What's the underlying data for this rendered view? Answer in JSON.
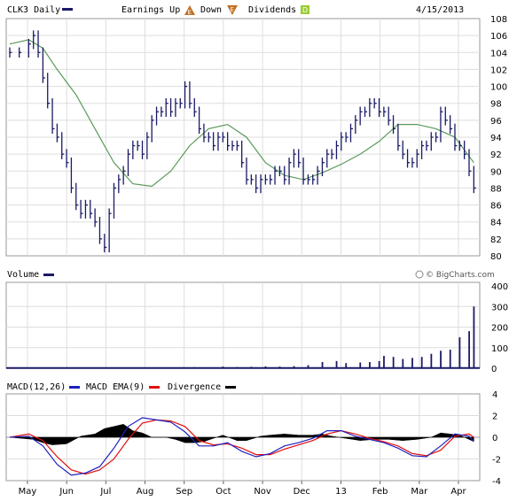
{
  "header": {
    "title": "CLK3 Daily",
    "earnings_label": "Earnings Up",
    "down_label": "Down",
    "dividends_label": "Dividends",
    "earnings_up_glyph": "E",
    "earnings_down_glyph": "E",
    "dividend_glyph": "D",
    "date": "4/15/2013"
  },
  "volume_label": "Volume",
  "watermark": "© BigCharts.com",
  "macd_legend": {
    "macd": "MACD(12,26)",
    "ema": "MACD EMA(9)",
    "divergence": "Divergence"
  },
  "colors": {
    "price": "#1a1a66",
    "ma": "#5a9a5a",
    "macd": "#2020c0",
    "ema": "#e01010",
    "divergence": "#000000",
    "volume": "#1a1a66",
    "earnings_up": "#c07020",
    "dividend": "#99cc33"
  },
  "chart_data": [
    {
      "type": "line",
      "name": "price",
      "ylim": [
        80,
        108
      ],
      "yticks": [
        80,
        82,
        84,
        86,
        88,
        90,
        92,
        94,
        96,
        98,
        100,
        102,
        104,
        106,
        108
      ],
      "xlabels": [
        "May",
        "Jun",
        "Jul",
        "Aug",
        "Sep",
        "Oct",
        "Nov",
        "Dec",
        "13",
        "Feb",
        "Mar",
        "Apr"
      ],
      "price": [
        [
          0,
          104
        ],
        [
          4,
          104
        ],
        [
          8,
          105
        ],
        [
          10,
          106
        ],
        [
          12,
          104
        ],
        [
          14,
          101
        ],
        [
          16,
          98
        ],
        [
          18,
          95
        ],
        [
          20,
          94
        ],
        [
          22,
          92
        ],
        [
          24,
          91
        ],
        [
          26,
          88
        ],
        [
          28,
          86
        ],
        [
          30,
          85
        ],
        [
          32,
          86
        ],
        [
          34,
          85
        ],
        [
          36,
          84
        ],
        [
          38,
          82
        ],
        [
          40,
          81
        ],
        [
          42,
          85
        ],
        [
          44,
          88
        ],
        [
          46,
          89
        ],
        [
          48,
          90
        ],
        [
          50,
          92
        ],
        [
          52,
          93
        ],
        [
          54,
          93
        ],
        [
          56,
          92
        ],
        [
          58,
          94
        ],
        [
          60,
          96
        ],
        [
          62,
          97
        ],
        [
          64,
          97
        ],
        [
          66,
          98
        ],
        [
          68,
          97
        ],
        [
          70,
          98
        ],
        [
          72,
          98
        ],
        [
          74,
          100
        ],
        [
          76,
          98
        ],
        [
          78,
          97
        ],
        [
          80,
          95
        ],
        [
          82,
          94
        ],
        [
          84,
          94
        ],
        [
          86,
          93
        ],
        [
          88,
          94
        ],
        [
          90,
          94
        ],
        [
          92,
          93
        ],
        [
          94,
          93
        ],
        [
          96,
          93
        ],
        [
          98,
          91
        ],
        [
          100,
          89
        ],
        [
          102,
          89
        ],
        [
          104,
          88
        ],
        [
          106,
          89
        ],
        [
          108,
          89
        ],
        [
          110,
          89
        ],
        [
          112,
          90
        ],
        [
          114,
          90
        ],
        [
          116,
          89
        ],
        [
          118,
          91
        ],
        [
          120,
          92
        ],
        [
          122,
          91
        ],
        [
          124,
          89
        ],
        [
          126,
          89
        ],
        [
          128,
          89
        ],
        [
          130,
          90
        ],
        [
          132,
          91
        ],
        [
          134,
          92
        ],
        [
          136,
          92
        ],
        [
          138,
          93
        ],
        [
          140,
          94
        ],
        [
          142,
          94
        ],
        [
          144,
          95
        ],
        [
          146,
          96
        ],
        [
          148,
          97
        ],
        [
          150,
          97
        ],
        [
          152,
          98
        ],
        [
          154,
          98
        ],
        [
          156,
          97
        ],
        [
          158,
          97
        ],
        [
          160,
          96
        ],
        [
          162,
          95
        ],
        [
          164,
          93
        ],
        [
          166,
          92
        ],
        [
          168,
          91
        ],
        [
          170,
          91
        ],
        [
          172,
          92
        ],
        [
          174,
          93
        ],
        [
          176,
          93
        ],
        [
          178,
          94
        ],
        [
          180,
          94
        ],
        [
          182,
          97
        ],
        [
          184,
          96
        ],
        [
          186,
          95
        ],
        [
          188,
          93
        ],
        [
          190,
          93
        ],
        [
          192,
          92
        ],
        [
          194,
          90
        ],
        [
          196,
          88
        ]
      ],
      "moving_average": [
        [
          0,
          105
        ],
        [
          8,
          105.5
        ],
        [
          14,
          104.5
        ],
        [
          20,
          102
        ],
        [
          28,
          99
        ],
        [
          36,
          95
        ],
        [
          44,
          91
        ],
        [
          52,
          88.5
        ],
        [
          60,
          88.2
        ],
        [
          68,
          90
        ],
        [
          76,
          93
        ],
        [
          84,
          95
        ],
        [
          92,
          95.5
        ],
        [
          100,
          94
        ],
        [
          108,
          91
        ],
        [
          116,
          89.5
        ],
        [
          124,
          89
        ],
        [
          132,
          89.8
        ],
        [
          140,
          90.8
        ],
        [
          148,
          92
        ],
        [
          156,
          93.5
        ],
        [
          164,
          95.5
        ],
        [
          172,
          95.5
        ],
        [
          180,
          95
        ],
        [
          188,
          94
        ],
        [
          196,
          91
        ]
      ]
    },
    {
      "type": "bar",
      "name": "volume",
      "ylim": [
        0,
        400
      ],
      "yticks": [
        0,
        100,
        200,
        300,
        400
      ],
      "values": [
        [
          70,
          3
        ],
        [
          74,
          4
        ],
        [
          78,
          5
        ],
        [
          84,
          4
        ],
        [
          90,
          8
        ],
        [
          96,
          6
        ],
        [
          102,
          7
        ],
        [
          108,
          9
        ],
        [
          114,
          8
        ],
        [
          120,
          10
        ],
        [
          126,
          15
        ],
        [
          132,
          30
        ],
        [
          138,
          35
        ],
        [
          142,
          25
        ],
        [
          148,
          28
        ],
        [
          152,
          30
        ],
        [
          156,
          35
        ],
        [
          158,
          60
        ],
        [
          162,
          55
        ],
        [
          166,
          45
        ],
        [
          170,
          50
        ],
        [
          174,
          55
        ],
        [
          178,
          70
        ],
        [
          182,
          85
        ],
        [
          186,
          90
        ],
        [
          190,
          150
        ],
        [
          194,
          180
        ],
        [
          196,
          300
        ]
      ]
    },
    {
      "type": "line",
      "name": "macd",
      "ylim": [
        -4,
        4
      ],
      "yticks": [
        -4,
        -2,
        0,
        2,
        4
      ],
      "macd": [
        [
          0,
          0
        ],
        [
          8,
          0.1
        ],
        [
          14,
          -0.8
        ],
        [
          20,
          -2.5
        ],
        [
          26,
          -3.5
        ],
        [
          32,
          -3.3
        ],
        [
          38,
          -2.7
        ],
        [
          44,
          -1
        ],
        [
          50,
          1
        ],
        [
          56,
          1.8
        ],
        [
          62,
          1.6
        ],
        [
          68,
          1.4
        ],
        [
          74,
          0.5
        ],
        [
          80,
          -0.8
        ],
        [
          86,
          -0.8
        ],
        [
          92,
          -0.5
        ],
        [
          98,
          -1.3
        ],
        [
          104,
          -1.8
        ],
        [
          110,
          -1.5
        ],
        [
          116,
          -0.8
        ],
        [
          122,
          -0.5
        ],
        [
          128,
          -0.1
        ],
        [
          134,
          0.6
        ],
        [
          140,
          0.6
        ],
        [
          146,
          0.1
        ],
        [
          152,
          -0.2
        ],
        [
          158,
          -0.5
        ],
        [
          164,
          -1
        ],
        [
          170,
          -1.7
        ],
        [
          176,
          -1.8
        ],
        [
          182,
          -0.8
        ],
        [
          188,
          0.3
        ],
        [
          194,
          0.1
        ],
        [
          196,
          -0.4
        ]
      ],
      "ema": [
        [
          0,
          0
        ],
        [
          8,
          0.3
        ],
        [
          14,
          -0.3
        ],
        [
          20,
          -1.8
        ],
        [
          26,
          -3
        ],
        [
          32,
          -3.4
        ],
        [
          38,
          -3
        ],
        [
          44,
          -2
        ],
        [
          50,
          -0.2
        ],
        [
          56,
          1.3
        ],
        [
          62,
          1.6
        ],
        [
          68,
          1.5
        ],
        [
          74,
          1
        ],
        [
          80,
          -0.3
        ],
        [
          86,
          -0.7
        ],
        [
          92,
          -0.6
        ],
        [
          98,
          -1
        ],
        [
          104,
          -1.6
        ],
        [
          110,
          -1.6
        ],
        [
          116,
          -1.1
        ],
        [
          122,
          -0.7
        ],
        [
          128,
          -0.3
        ],
        [
          134,
          0.3
        ],
        [
          140,
          0.6
        ],
        [
          146,
          0.3
        ],
        [
          152,
          -0.1
        ],
        [
          158,
          -0.4
        ],
        [
          164,
          -0.8
        ],
        [
          170,
          -1.5
        ],
        [
          176,
          -1.7
        ],
        [
          182,
          -1.2
        ],
        [
          188,
          0.1
        ],
        [
          194,
          0.3
        ],
        [
          196,
          0
        ]
      ],
      "divergence": [
        [
          0,
          0
        ],
        [
          10,
          -0.2
        ],
        [
          14,
          -0.5
        ],
        [
          18,
          -0.7
        ],
        [
          24,
          -0.6
        ],
        [
          30,
          0.1
        ],
        [
          36,
          0.3
        ],
        [
          40,
          0.8
        ],
        [
          44,
          1
        ],
        [
          48,
          1.2
        ],
        [
          52,
          0.6
        ],
        [
          56,
          0.4
        ],
        [
          60,
          0
        ],
        [
          66,
          0
        ],
        [
          70,
          -0.2
        ],
        [
          74,
          -0.5
        ],
        [
          78,
          -0.5
        ],
        [
          82,
          -0.4
        ],
        [
          86,
          -0.1
        ],
        [
          90,
          0.2
        ],
        [
          96,
          -0.3
        ],
        [
          100,
          -0.3
        ],
        [
          106,
          0.1
        ],
        [
          110,
          0.2
        ],
        [
          116,
          0.3
        ],
        [
          122,
          0.2
        ],
        [
          128,
          0.2
        ],
        [
          132,
          0.3
        ],
        [
          136,
          0.1
        ],
        [
          142,
          -0.1
        ],
        [
          148,
          -0.3
        ],
        [
          154,
          -0.2
        ],
        [
          160,
          -0.2
        ],
        [
          166,
          -0.3
        ],
        [
          172,
          -0.2
        ],
        [
          178,
          0
        ],
        [
          182,
          0.4
        ],
        [
          186,
          0.3
        ],
        [
          190,
          0.2
        ],
        [
          194,
          -0.2
        ],
        [
          196,
          -0.4
        ]
      ]
    }
  ]
}
